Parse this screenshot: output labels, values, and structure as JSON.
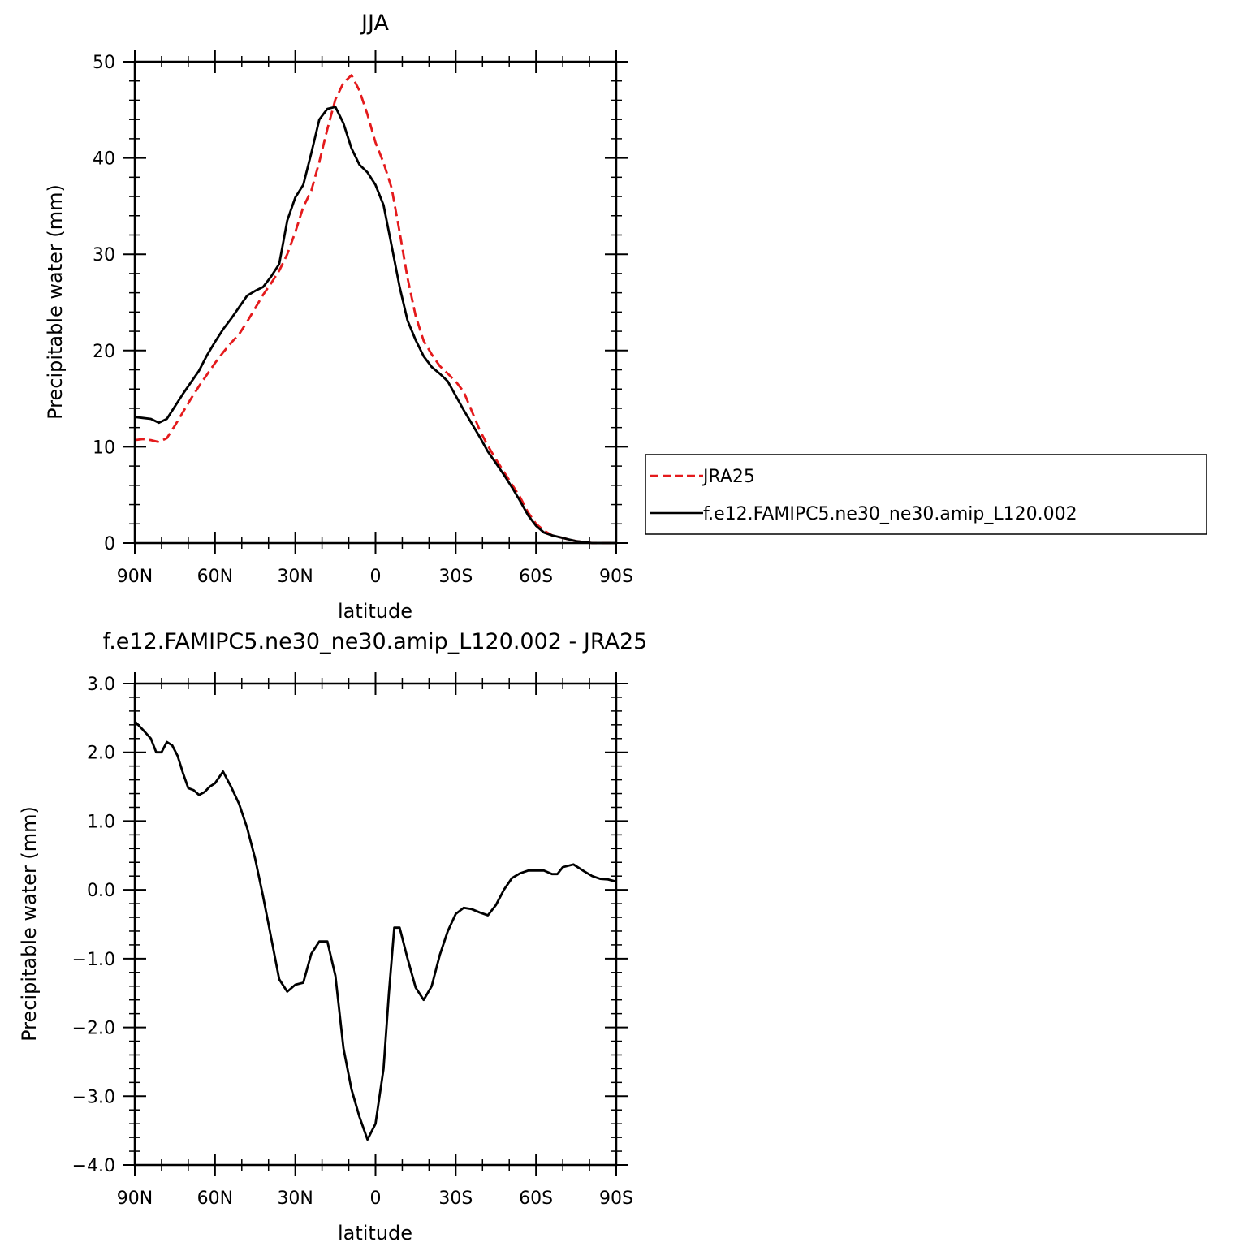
{
  "chart_data": [
    {
      "type": "line",
      "title": "JJA",
      "xlabel": "latitude",
      "ylabel": "Precipitable water (mm)",
      "xlim": [
        90,
        -90
      ],
      "ylim": [
        0,
        50
      ],
      "x_ticks": [
        90,
        60,
        30,
        0,
        -30,
        -60,
        -90
      ],
      "x_tick_labels": [
        "90N",
        "60N",
        "30N",
        "0",
        "30S",
        "60S",
        "90S"
      ],
      "y_ticks": [
        0,
        10,
        20,
        30,
        40,
        50
      ],
      "y_tick_labels": [
        "0",
        "10",
        "20",
        "30",
        "40",
        "50"
      ],
      "legend_position": "right",
      "series": [
        {
          "name": "JRA25",
          "color": "#e41a1c",
          "dash": "dashed",
          "x": [
            90,
            87,
            84,
            81,
            78,
            75,
            72,
            69,
            66,
            63,
            60,
            57,
            54,
            51,
            48,
            45,
            42,
            39,
            36,
            33,
            30,
            27,
            24,
            21,
            18,
            15,
            12,
            9,
            6,
            3,
            0,
            -3,
            -6,
            -9,
            -12,
            -15,
            -18,
            -21,
            -24,
            -27,
            -30,
            -33,
            -36,
            -39,
            -42,
            -45,
            -48,
            -51,
            -54,
            -57,
            -60,
            -63,
            -66,
            -69,
            -72,
            -75,
            -78,
            -81,
            -84,
            -87,
            -90
          ],
          "values": [
            10.7,
            10.8,
            10.7,
            10.5,
            10.9,
            12.2,
            13.6,
            15.0,
            16.3,
            17.5,
            18.7,
            19.8,
            20.8,
            21.7,
            23.0,
            24.4,
            25.8,
            27.0,
            28.3,
            30.0,
            32.3,
            34.9,
            36.6,
            39.6,
            43.0,
            46.1,
            47.8,
            48.6,
            47.0,
            44.5,
            41.6,
            39.5,
            36.9,
            32.3,
            27.5,
            23.6,
            21.0,
            19.6,
            18.4,
            17.6,
            16.8,
            15.7,
            13.7,
            11.7,
            10.1,
            8.7,
            7.4,
            6.1,
            4.8,
            3.2,
            2.0,
            1.3,
            0.8,
            0.6,
            0.4,
            0.2,
            0.1,
            0.0,
            0.0,
            0.0,
            0.0
          ]
        },
        {
          "name": "f.e12.FAMIPC5.ne30_ne30.amip_L120.002",
          "color": "#000000",
          "dash": "solid",
          "x": [
            90,
            87,
            84,
            81,
            78,
            75,
            72,
            69,
            66,
            63,
            60,
            57,
            54,
            51,
            48,
            45,
            42,
            39,
            36,
            33,
            30,
            27,
            24,
            21,
            18,
            15,
            12,
            9,
            6,
            3,
            0,
            -3,
            -6,
            -9,
            -12,
            -15,
            -18,
            -21,
            -24,
            -27,
            -30,
            -33,
            -36,
            -39,
            -42,
            -45,
            -48,
            -51,
            -54,
            -57,
            -60,
            -63,
            -66,
            -69,
            -72,
            -75,
            -78,
            -81,
            -84,
            -87,
            -90
          ],
          "values": [
            13.1,
            13.0,
            12.9,
            12.5,
            12.9,
            14.2,
            15.5,
            16.7,
            17.9,
            19.5,
            20.9,
            22.2,
            23.3,
            24.5,
            25.7,
            26.2,
            26.6,
            27.7,
            29.0,
            33.5,
            35.9,
            37.2,
            40.5,
            44.0,
            45.1,
            45.3,
            43.6,
            41.0,
            39.3,
            38.5,
            37.2,
            35.1,
            30.9,
            26.6,
            23.1,
            21.1,
            19.4,
            18.3,
            17.6,
            16.8,
            15.3,
            13.8,
            12.4,
            11.0,
            9.5,
            8.3,
            7.1,
            5.8,
            4.4,
            2.9,
            1.8,
            1.1,
            0.8,
            0.6,
            0.4,
            0.2,
            0.1,
            0.0,
            0.0,
            0.0,
            0.0
          ]
        }
      ]
    },
    {
      "type": "line",
      "title": "f.e12.FAMIPC5.ne30_ne30.amip_L120.002 - JRA25",
      "xlabel": "latitude",
      "ylabel": "Precipitable water (mm)",
      "xlim": [
        90,
        -90
      ],
      "ylim": [
        -4.0,
        3.0
      ],
      "x_ticks": [
        90,
        60,
        30,
        0,
        -30,
        -60,
        -90
      ],
      "x_tick_labels": [
        "90N",
        "60N",
        "30N",
        "0",
        "30S",
        "60S",
        "90S"
      ],
      "y_ticks": [
        -4.0,
        -3.0,
        -2.0,
        -1.0,
        0.0,
        1.0,
        2.0,
        3.0
      ],
      "y_tick_labels": [
        "−4.0",
        "−3.0",
        "−2.0",
        "−1.0",
        "0.0",
        "1.0",
        "2.0",
        "3.0"
      ],
      "series": [
        {
          "color": "#000000",
          "dash": "solid",
          "x": [
            90,
            87,
            84,
            82,
            80,
            78,
            76,
            74,
            72,
            70,
            68,
            66,
            64,
            62,
            60,
            57,
            54,
            51,
            48,
            45,
            42,
            39,
            36,
            33,
            30,
            27,
            24,
            21,
            18,
            15,
            12,
            9,
            6,
            3,
            0,
            -3,
            -5,
            -7,
            -9,
            -12,
            -15,
            -18,
            -21,
            -24,
            -27,
            -30,
            -33,
            -36,
            -39,
            -42,
            -45,
            -48,
            -51,
            -54,
            -57,
            -60,
            -63,
            -66,
            -68,
            -70,
            -74,
            -78,
            -81,
            -84,
            -87,
            -90
          ],
          "values": [
            2.45,
            2.33,
            2.2,
            2.0,
            2.0,
            2.15,
            2.1,
            1.95,
            1.7,
            1.48,
            1.45,
            1.38,
            1.42,
            1.5,
            1.55,
            1.72,
            1.5,
            1.25,
            0.9,
            0.45,
            -0.1,
            -0.7,
            -1.3,
            -1.48,
            -1.38,
            -1.35,
            -0.93,
            -0.75,
            -0.75,
            -1.25,
            -2.3,
            -2.9,
            -3.3,
            -3.63,
            -3.4,
            -2.6,
            -1.5,
            -0.55,
            -0.55,
            -1.0,
            -1.42,
            -1.6,
            -1.4,
            -0.95,
            -0.6,
            -0.35,
            -0.26,
            -0.28,
            -0.33,
            -0.37,
            -0.22,
            0.0,
            0.17,
            0.24,
            0.28,
            0.28,
            0.28,
            0.23,
            0.23,
            0.33,
            0.37,
            0.27,
            0.2,
            0.16,
            0.15,
            0.12
          ]
        }
      ]
    }
  ]
}
